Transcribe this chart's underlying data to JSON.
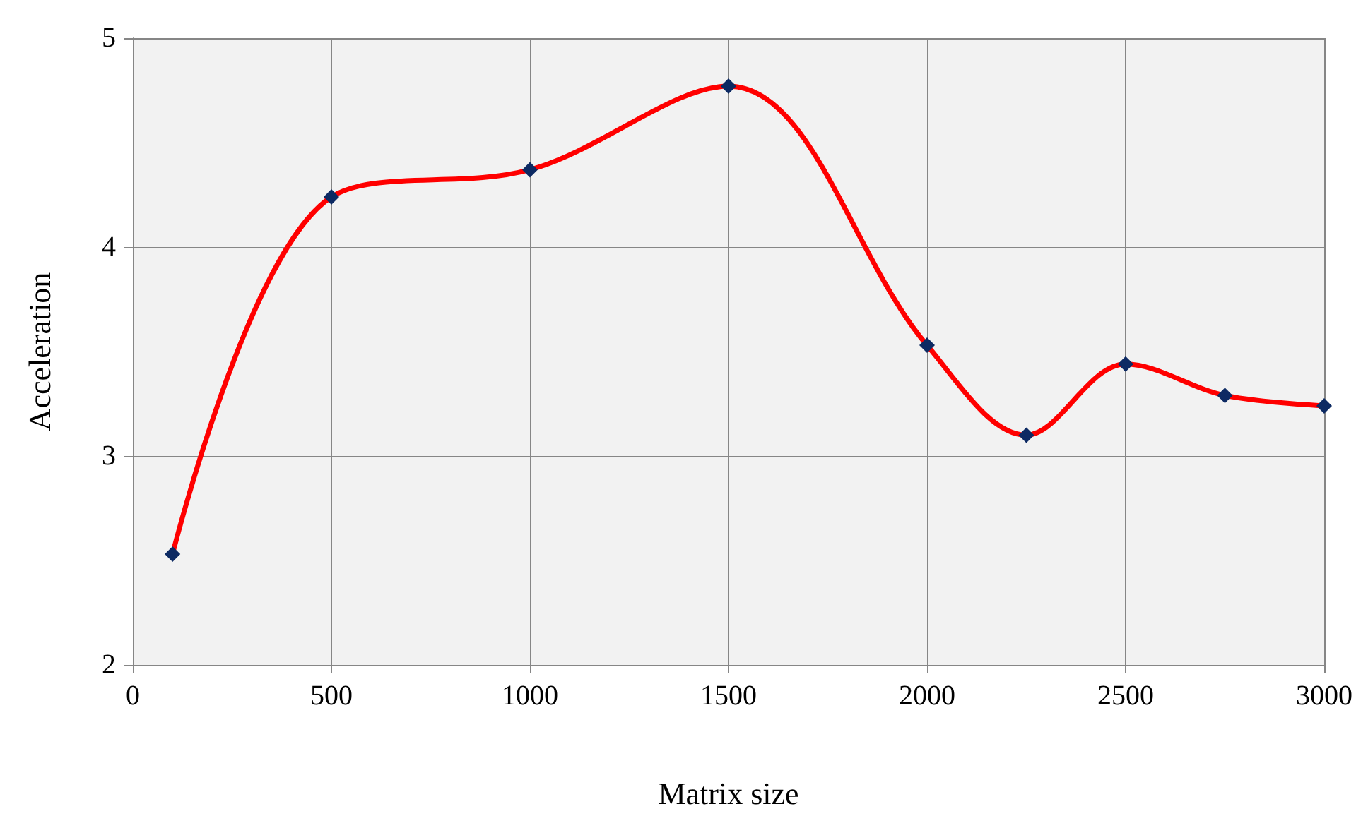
{
  "chart_data": {
    "type": "line",
    "xlabel": "Matrix size",
    "ylabel": "Acceleration",
    "x": [
      100,
      500,
      1000,
      1500,
      2000,
      2250,
      2500,
      2750,
      3000
    ],
    "series": [
      {
        "color": "#ff0000",
        "values": [
          2.53,
          4.24,
          4.37,
          4.77,
          3.53,
          3.1,
          3.44,
          3.29,
          3.24
        ]
      }
    ],
    "xlim": [
      0,
      3000
    ],
    "xticks": [
      0,
      500,
      1000,
      1500,
      2000,
      2500,
      3000
    ],
    "ylim": [
      2,
      5
    ],
    "yticks": [
      2,
      3,
      4,
      5
    ],
    "grid": true,
    "marker": "diamond",
    "line_style": "solid"
  }
}
